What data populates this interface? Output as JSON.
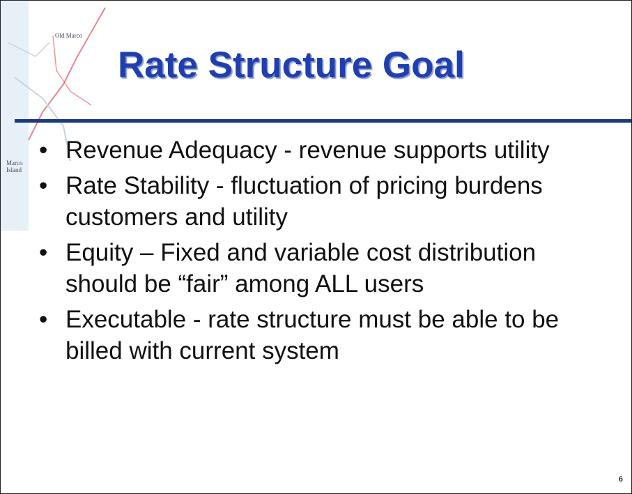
{
  "title": "Rate Structure Goal",
  "map_labels": [
    "Old Marco",
    "Marco Island"
  ],
  "bullets": [
    "Revenue Adequacy - revenue supports utility",
    "Rate Stability - fluctuation of pricing burdens customers and utility",
    "Equity – Fixed and variable cost distribution should be “fair” among ALL users",
    "Executable - rate structure must be able to be billed with current system"
  ],
  "page_number": "6"
}
